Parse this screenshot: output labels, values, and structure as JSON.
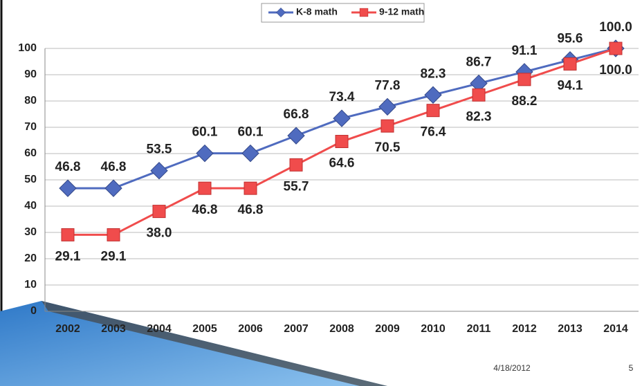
{
  "chart_data": {
    "type": "line",
    "categories": [
      "2002",
      "2003",
      "2004",
      "2005",
      "2006",
      "2007",
      "2008",
      "2009",
      "2010",
      "2011",
      "2012",
      "2013",
      "2014"
    ],
    "series": [
      {
        "name": "K-8 math",
        "color": "#4f6bbf",
        "marker": "diamond",
        "values": [
          46.8,
          46.8,
          53.5,
          60.1,
          60.1,
          66.8,
          73.4,
          77.8,
          82.3,
          86.7,
          91.1,
          95.6,
          100.0
        ],
        "value_labels": [
          "46.8",
          "46.8",
          "53.5",
          "60.1",
          "60.1",
          "66.8",
          "73.4",
          "77.8",
          "82.3",
          "86.7",
          "91.1",
          "95.6",
          "100.0"
        ]
      },
      {
        "name": "9-12 math",
        "color": "#f04c4c",
        "marker": "square",
        "values": [
          29.1,
          29.1,
          38.0,
          46.8,
          46.8,
          55.7,
          64.6,
          70.5,
          76.4,
          82.3,
          88.2,
          94.1,
          100.0
        ],
        "value_labels": [
          "29.1",
          "29.1",
          "38.0",
          "46.8",
          "46.8",
          "55.7",
          "64.6",
          "70.5",
          "76.4",
          "82.3",
          "88.2",
          "94.1",
          "100.0"
        ]
      }
    ],
    "ylim": [
      0,
      100
    ],
    "yticks": [
      0,
      10,
      20,
      30,
      40,
      50,
      60,
      70,
      80,
      90,
      100
    ],
    "grid": true,
    "legend": "top"
  },
  "slide": {
    "date": "4/18/2012",
    "number": "5"
  }
}
